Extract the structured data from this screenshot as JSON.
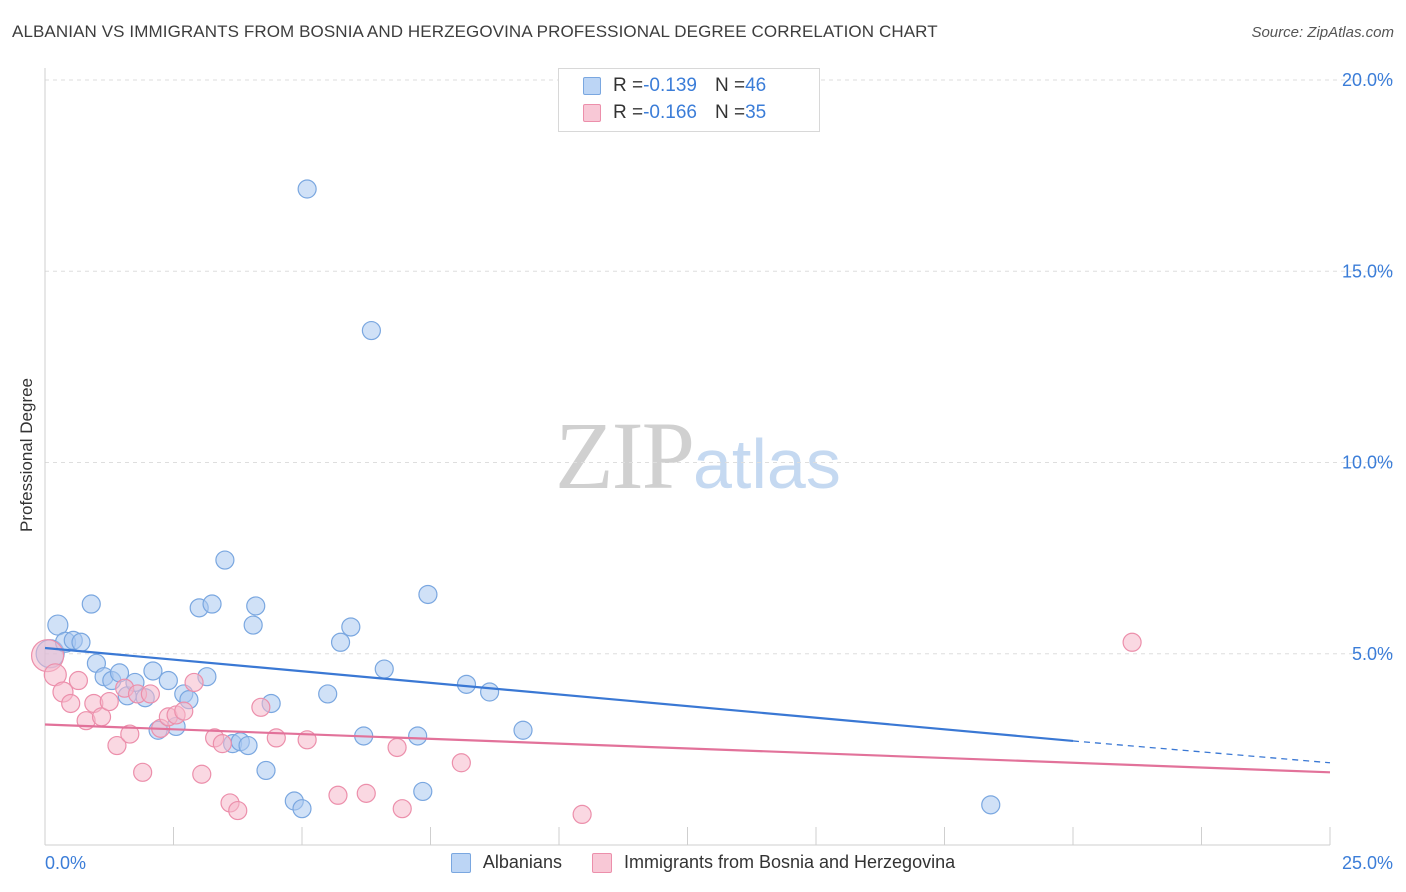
{
  "header": {
    "title": "ALBANIAN VS IMMIGRANTS FROM BOSNIA AND HERZEGOVINA PROFESSIONAL DEGREE CORRELATION CHART",
    "source": "Source: ZipAtlas.com"
  },
  "watermark": {
    "zip": "ZIP",
    "atlas": "atlas"
  },
  "legend": {
    "rows": [
      {
        "r_label": "R = ",
        "r_value": "-0.139",
        "n_label": "N = ",
        "n_value": "46"
      },
      {
        "r_label": "R = ",
        "r_value": "-0.166",
        "n_label": "N = ",
        "n_value": "35"
      }
    ]
  },
  "bottom_legend": [
    "Albanians",
    "Immigrants from Bosnia and Herzegovina"
  ],
  "colors": {
    "blue_fill": "#aac8f0",
    "blue_stroke": "#7aa7e0",
    "blue_line": "#3a78d4",
    "pink_fill": "#f5b8ca",
    "pink_stroke": "#ec8fab",
    "pink_line": "#e2729a",
    "tick_text": "#3b7dd8",
    "grid": "#dedede"
  },
  "chart_data": {
    "type": "scatter",
    "title": "ALBANIAN VS IMMIGRANTS FROM BOSNIA AND HERZEGOVINA PROFESSIONAL DEGREE CORRELATION CHART",
    "xlabel": "",
    "ylabel": "Professional Degree",
    "xlim": [
      0,
      25
    ],
    "ylim": [
      0,
      20.5
    ],
    "x_tick_labels": [
      "0.0%",
      "25.0%"
    ],
    "y_ticks": [
      5,
      10,
      15,
      20
    ],
    "y_tick_labels": [
      "5.0%",
      "10.0%",
      "15.0%",
      "20.0%"
    ],
    "grid": true,
    "series": [
      {
        "name": "Albanians",
        "color": "#aac8f0",
        "R": -0.139,
        "N": 46,
        "trend": {
          "x0": 0,
          "y0": 5.15,
          "x1": 20,
          "y1": 2.72,
          "dashed_to_x": 25,
          "dashed_to_y": 2.15
        },
        "points": [
          [
            0.1,
            5.0,
            14
          ],
          [
            0.25,
            5.75,
            10
          ],
          [
            0.4,
            5.3,
            10
          ],
          [
            0.55,
            5.35,
            9
          ],
          [
            0.7,
            5.3,
            9
          ],
          [
            0.9,
            6.3,
            9
          ],
          [
            1.0,
            4.75,
            9
          ],
          [
            1.15,
            4.4,
            9
          ],
          [
            1.3,
            4.3,
            9
          ],
          [
            1.45,
            4.5,
            9
          ],
          [
            1.6,
            3.9,
            9
          ],
          [
            1.75,
            4.25,
            9
          ],
          [
            1.95,
            3.85,
            9
          ],
          [
            2.1,
            4.55,
            9
          ],
          [
            2.2,
            3.0,
            9
          ],
          [
            2.4,
            4.3,
            9
          ],
          [
            2.55,
            3.1,
            9
          ],
          [
            2.7,
            3.95,
            9
          ],
          [
            2.8,
            3.8,
            9
          ],
          [
            3.0,
            6.2,
            9
          ],
          [
            3.15,
            4.4,
            9
          ],
          [
            3.25,
            6.3,
            9
          ],
          [
            3.5,
            7.45,
            9
          ],
          [
            3.65,
            2.65,
            9
          ],
          [
            3.8,
            2.7,
            9
          ],
          [
            3.95,
            2.6,
            9
          ],
          [
            4.05,
            5.75,
            9
          ],
          [
            4.1,
            6.25,
            9
          ],
          [
            4.3,
            1.95,
            9
          ],
          [
            4.4,
            3.7,
            9
          ],
          [
            4.85,
            1.15,
            9
          ],
          [
            5.0,
            0.95,
            9
          ],
          [
            5.1,
            17.15,
            9
          ],
          [
            5.5,
            3.95,
            9
          ],
          [
            5.75,
            5.3,
            9
          ],
          [
            5.95,
            5.7,
            9
          ],
          [
            6.2,
            2.85,
            9
          ],
          [
            6.35,
            13.45,
            9
          ],
          [
            6.6,
            4.6,
            9
          ],
          [
            7.25,
            2.85,
            9
          ],
          [
            7.35,
            1.4,
            9
          ],
          [
            7.45,
            6.55,
            9
          ],
          [
            8.2,
            4.2,
            9
          ],
          [
            8.65,
            4.0,
            9
          ],
          [
            9.3,
            3.0,
            9
          ],
          [
            18.4,
            1.05,
            9
          ]
        ]
      },
      {
        "name": "Immigrants from Bosnia and Herzegovina",
        "color": "#f5b8ca",
        "R": -0.166,
        "N": 35,
        "trend": {
          "x0": 0,
          "y0": 3.15,
          "x1": 25,
          "y1": 1.9
        },
        "points": [
          [
            0.05,
            4.95,
            16
          ],
          [
            0.2,
            4.45,
            11
          ],
          [
            0.35,
            4.0,
            10
          ],
          [
            0.5,
            3.7,
            9
          ],
          [
            0.65,
            4.3,
            9
          ],
          [
            0.8,
            3.25,
            9
          ],
          [
            0.95,
            3.7,
            9
          ],
          [
            1.1,
            3.35,
            9
          ],
          [
            1.25,
            3.75,
            9
          ],
          [
            1.4,
            2.6,
            9
          ],
          [
            1.55,
            4.1,
            9
          ],
          [
            1.65,
            2.9,
            9
          ],
          [
            1.8,
            3.95,
            9
          ],
          [
            1.9,
            1.9,
            9
          ],
          [
            2.05,
            3.95,
            9
          ],
          [
            2.25,
            3.05,
            9
          ],
          [
            2.4,
            3.35,
            9
          ],
          [
            2.55,
            3.4,
            9
          ],
          [
            2.7,
            3.5,
            9
          ],
          [
            2.9,
            4.25,
            9
          ],
          [
            3.05,
            1.85,
            9
          ],
          [
            3.3,
            2.8,
            9
          ],
          [
            3.45,
            2.65,
            9
          ],
          [
            3.6,
            1.1,
            9
          ],
          [
            3.75,
            0.9,
            9
          ],
          [
            4.2,
            3.6,
            9
          ],
          [
            4.5,
            2.8,
            9
          ],
          [
            5.1,
            2.75,
            9
          ],
          [
            5.7,
            1.3,
            9
          ],
          [
            6.25,
            1.35,
            9
          ],
          [
            6.85,
            2.55,
            9
          ],
          [
            6.95,
            0.95,
            9
          ],
          [
            8.1,
            2.15,
            9
          ],
          [
            10.45,
            0.8,
            9
          ],
          [
            21.15,
            5.3,
            9
          ]
        ]
      }
    ]
  }
}
